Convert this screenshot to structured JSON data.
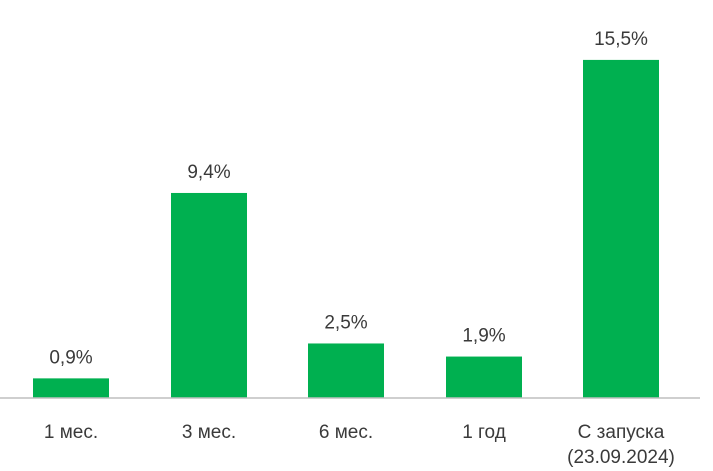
{
  "chart_data": {
    "type": "bar",
    "categories": [
      [
        "1 мес."
      ],
      [
        "3 мес."
      ],
      [
        "6 мес."
      ],
      [
        "1 год"
      ],
      [
        "С запуска",
        "(23.09.2024)"
      ]
    ],
    "values": [
      0.9,
      9.4,
      2.5,
      1.9,
      15.5
    ],
    "data_labels": [
      "0,9%",
      "9,4%",
      "2,5%",
      "1,9%",
      "15,5%"
    ],
    "title": "",
    "xlabel": "",
    "ylabel": "",
    "ylim": [
      0,
      16
    ],
    "grid": false,
    "legend": "none",
    "bar_color": "#00b050",
    "axis_color": "#bfbfbf",
    "text_color": "#3a3a3a"
  }
}
